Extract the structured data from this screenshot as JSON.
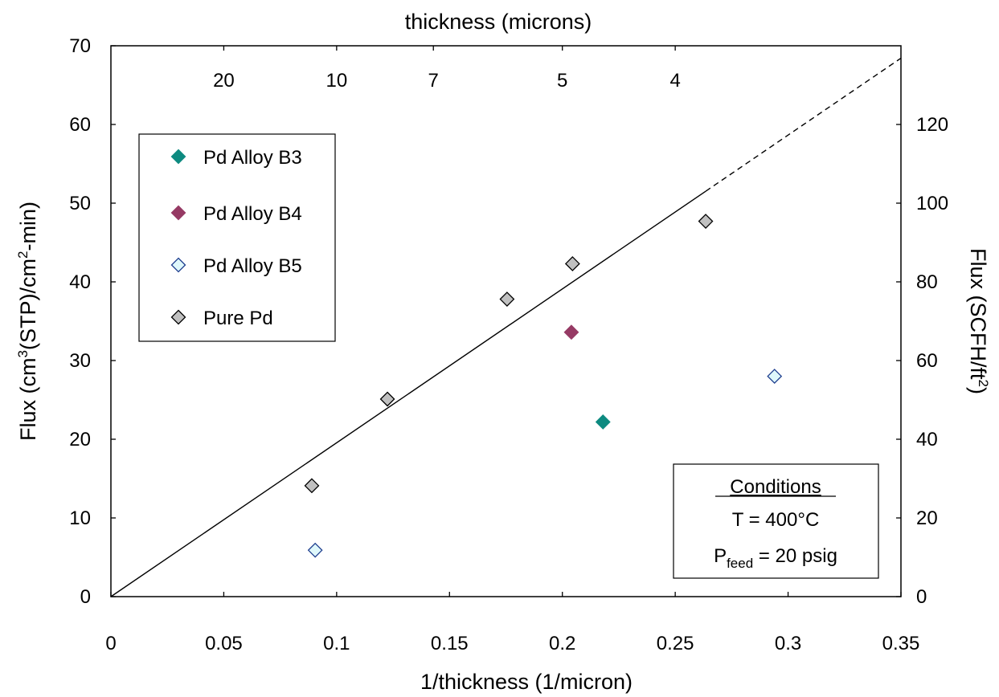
{
  "chart_data": {
    "type": "scatter",
    "xlabel": "1/thickness (1/micron)",
    "ylabel_main": "Flux (cm",
    "ylabel_sup": "3",
    "ylabel_mid": "(STP)/cm",
    "ylabel_sup2": "2",
    "ylabel_end": "-min)",
    "y2label_main": "Flux (SCFH/ft",
    "y2label_sup": "2",
    "y2label_end": ")",
    "x2label": "thickness (microns)",
    "xlim": [
      0,
      0.35
    ],
    "ylim": [
      0,
      70
    ],
    "y2lim": [
      0,
      140
    ],
    "x_ticks": [
      0,
      0.05,
      0.1,
      0.15,
      0.2,
      0.25,
      0.3,
      0.35
    ],
    "x_tick_labels": [
      "0",
      "0.05",
      "0.1",
      "0.15",
      "0.2",
      "0.25",
      "0.3",
      "0.35"
    ],
    "y_ticks": [
      0,
      10,
      20,
      30,
      40,
      50,
      60,
      70
    ],
    "y_tick_labels": [
      "0",
      "10",
      "20",
      "30",
      "40",
      "50",
      "60",
      "70"
    ],
    "y2_ticks": [
      0,
      20,
      40,
      60,
      80,
      100,
      120
    ],
    "y2_tick_labels": [
      "0",
      "20",
      "40",
      "60",
      "80",
      "100",
      "120"
    ],
    "x2_ticks_thickness": [
      20,
      10,
      7,
      5,
      4
    ],
    "x2_tick_labels": [
      "20",
      "10",
      "7",
      "5",
      "4"
    ],
    "series": [
      {
        "name": "Pd Alloy B3",
        "marker": "diamond-filled",
        "color": "#0d8a80",
        "edge": "#0d8a80",
        "points": [
          {
            "x": 0.218,
            "y": 22.2
          }
        ]
      },
      {
        "name": "Pd Alloy B4",
        "marker": "diamond-filled",
        "color": "#963a64",
        "edge": "#963a64",
        "points": [
          {
            "x": 0.204,
            "y": 33.6
          }
        ]
      },
      {
        "name": "Pd Alloy B5",
        "marker": "diamond-open",
        "color": "#dff8fb",
        "edge": "#1f3f8f",
        "points": [
          {
            "x": 0.0905,
            "y": 5.9
          },
          {
            "x": 0.294,
            "y": 28.0
          }
        ]
      },
      {
        "name": "Pure Pd",
        "marker": "diamond-open",
        "color": "#c0c0c0",
        "edge": "#000000",
        "points": [
          {
            "x": 0.089,
            "y": 14.1
          },
          {
            "x": 0.1225,
            "y": 25.1
          },
          {
            "x": 0.1755,
            "y": 37.8
          },
          {
            "x": 0.2045,
            "y": 42.3
          },
          {
            "x": 0.2635,
            "y": 47.7
          }
        ]
      }
    ],
    "fit_line": {
      "slope": 195.5,
      "solid_to_x": 0.2635,
      "dashed_to_x": 0.35
    },
    "conditions": {
      "title": "Conditions",
      "temp": "T = 400°C",
      "pfeed_prefix": "P",
      "pfeed_sub": "feed",
      "pfeed_suffix": " = 20 psig"
    },
    "grid": false,
    "legend_position": "upper-left"
  }
}
